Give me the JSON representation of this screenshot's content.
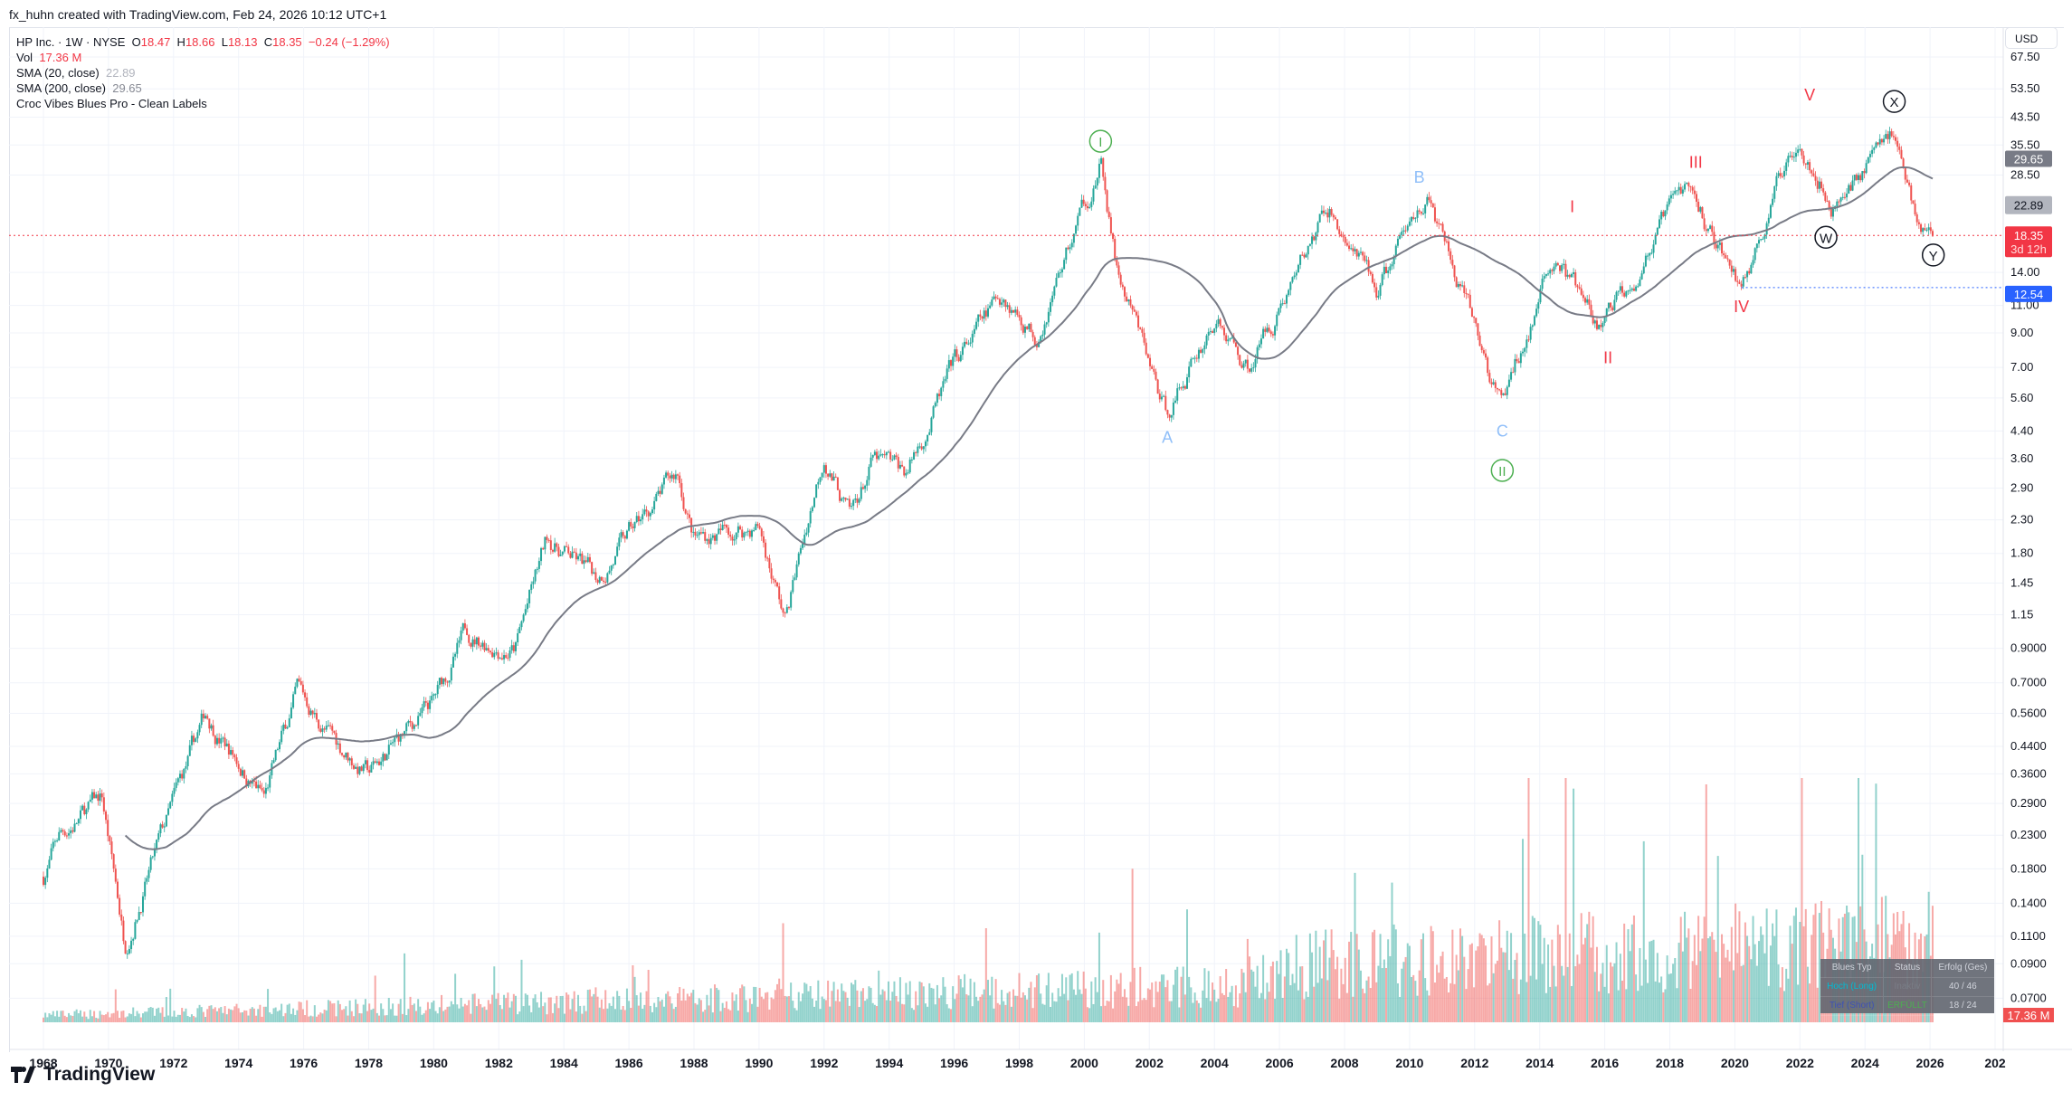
{
  "header": {
    "attribution": "fx_huhn created with TradingView.com, Feb 24, 2026 10:12 UTC+1"
  },
  "legend": {
    "symbol": "HP Inc. · 1W · NYSE",
    "o_label": "O",
    "o": "18.47",
    "h_label": "H",
    "h": "18.66",
    "l_label": "L",
    "l": "18.13",
    "c_label": "C",
    "c": "18.35",
    "change": "−0.24 (−1.29%)",
    "vol_label": "Vol",
    "vol": "17.36 M",
    "sma20_label": "SMA (20, close)",
    "sma20": "22.89",
    "sma200_label": "SMA (200, close)",
    "sma200": "29.65",
    "indicator": "Croc Vibes Blues Pro - Clean Labels"
  },
  "currency": "USD",
  "price_badges": {
    "sma200": "29.65",
    "sma20": "22.89",
    "last": "18.35",
    "countdown": "3d 12h",
    "level": "12.54",
    "volume": "17.36 M"
  },
  "colors": {
    "up": "#26a69a",
    "down": "#ef5350",
    "red": "#f23645",
    "blue": "#2962ff",
    "sma": "#787b86",
    "wave_red": "#f23645",
    "wave_blue": "#90bff9",
    "wave_green": "#4caf50"
  },
  "blues_table": {
    "headers": [
      "Blues Typ",
      "Status",
      "Erfolg (Ges)"
    ],
    "rows": [
      {
        "type": "Hoch (Long)",
        "status": "Inaktiv",
        "result": "40 / 46"
      },
      {
        "type": "Tief (Short)",
        "status": "ERFÜLLT",
        "result": "18 / 24"
      }
    ]
  },
  "branding": {
    "logo": "TradingView"
  },
  "chart_data": {
    "type": "candlestick",
    "title": "HP Inc. · 1W · NYSE",
    "y_scale": "log",
    "ylim": [
      0.065,
      72
    ],
    "xlim": [
      1967.4,
      2029.4
    ],
    "y_ticks": [
      "67.50",
      "53.50",
      "43.50",
      "35.50",
      "28.50",
      "14.00",
      "11.00",
      "9.00",
      "7.00",
      "5.60",
      "4.40",
      "3.60",
      "2.90",
      "2.30",
      "1.80",
      "1.45",
      "1.15",
      "0.9000",
      "0.7000",
      "0.5600",
      "0.4400",
      "0.3600",
      "0.2900",
      "0.2300",
      "0.1800",
      "0.1400",
      "0.1100",
      "0.0900",
      "0.0700"
    ],
    "x_ticks": [
      "1968",
      "1970",
      "1972",
      "1974",
      "1976",
      "1978",
      "1980",
      "1982",
      "1984",
      "1986",
      "1988",
      "1990",
      "1992",
      "1994",
      "1996",
      "1998",
      "2000",
      "2002",
      "2004",
      "2006",
      "2008",
      "2010",
      "2012",
      "2014",
      "2016",
      "2018",
      "2020",
      "2022",
      "2024",
      "2026",
      "202"
    ],
    "price_path": [
      [
        1968,
        0.17
      ],
      [
        1968.5,
        0.23
      ],
      [
        1969.8,
        0.3
      ],
      [
        1970.5,
        0.105
      ],
      [
        1971.2,
        0.17
      ],
      [
        1973,
        0.55
      ],
      [
        1974.8,
        0.3
      ],
      [
        1975.8,
        0.65
      ],
      [
        1977,
        0.45
      ],
      [
        1978,
        0.36
      ],
      [
        1980,
        0.6
      ],
      [
        1981,
        1.0
      ],
      [
        1982.5,
        0.9
      ],
      [
        1983.5,
        2.0
      ],
      [
        1985,
        1.5
      ],
      [
        1987.5,
        3.2
      ],
      [
        1988,
        2.0
      ],
      [
        1990,
        2.2
      ],
      [
        1990.8,
        1.1
      ],
      [
        1991.5,
        2.3
      ],
      [
        1992,
        3.8
      ],
      [
        1992.8,
        2.3
      ],
      [
        1993.5,
        3.5
      ],
      [
        1994.5,
        3.2
      ],
      [
        1996,
        7
      ],
      [
        1997.5,
        12
      ],
      [
        1998.5,
        9
      ],
      [
        2000.5,
        31
      ],
      [
        2001,
        14
      ],
      [
        2002.5,
        5
      ],
      [
        2004,
        10
      ],
      [
        2005,
        7
      ],
      [
        2007.5,
        22
      ],
      [
        2009,
        12
      ],
      [
        2010.5,
        25
      ],
      [
        2012.8,
        5.2
      ],
      [
        2014.5,
        16
      ],
      [
        2015.8,
        9
      ],
      [
        2018.5,
        26
      ],
      [
        2020.2,
        12.5
      ],
      [
        2022,
        40
      ],
      [
        2023,
        23
      ],
      [
        2024.9,
        40
      ],
      [
        2025.5,
        22
      ],
      [
        2026.1,
        18.35
      ]
    ],
    "last_price": 18.35,
    "level_line": 12.54,
    "wave_labels": [
      {
        "text": "I",
        "year": 2000.5,
        "price": 36.5,
        "color": "green",
        "circled": true
      },
      {
        "text": "A",
        "year": 2002.55,
        "price": 4.2,
        "color": "blue",
        "circled": false
      },
      {
        "text": "B",
        "year": 2010.3,
        "price": 28,
        "color": "blue",
        "circled": false
      },
      {
        "text": "C",
        "year": 2012.85,
        "price": 4.4,
        "color": "blue",
        "circled": false
      },
      {
        "text": "II",
        "year": 2012.85,
        "price": 3.3,
        "color": "green",
        "circled": true
      },
      {
        "text": "I",
        "year": 2015.0,
        "price": 22.6,
        "color": "red",
        "circled": false
      },
      {
        "text": "II",
        "year": 2016.1,
        "price": 7.5,
        "color": "red",
        "circled": false
      },
      {
        "text": "III",
        "year": 2018.8,
        "price": 31.3,
        "color": "red",
        "circled": false
      },
      {
        "text": "IV",
        "year": 2020.2,
        "price": 10.9,
        "color": "red",
        "circled": false
      },
      {
        "text": "V",
        "year": 2022.3,
        "price": 51.2,
        "color": "red",
        "circled": false
      },
      {
        "text": "X",
        "year": 2024.9,
        "price": 48.8,
        "color": "black",
        "circled": true
      },
      {
        "text": "W",
        "year": 2022.8,
        "price": 18.1,
        "color": "black",
        "circled": true
      },
      {
        "text": "Y",
        "year": 2026.1,
        "price": 15.9,
        "color": "black",
        "circled": true
      }
    ],
    "series": [
      {
        "name": "SMA (200, close)",
        "last": 29.65
      },
      {
        "name": "SMA (20, close)",
        "last": 22.89
      }
    ]
  }
}
